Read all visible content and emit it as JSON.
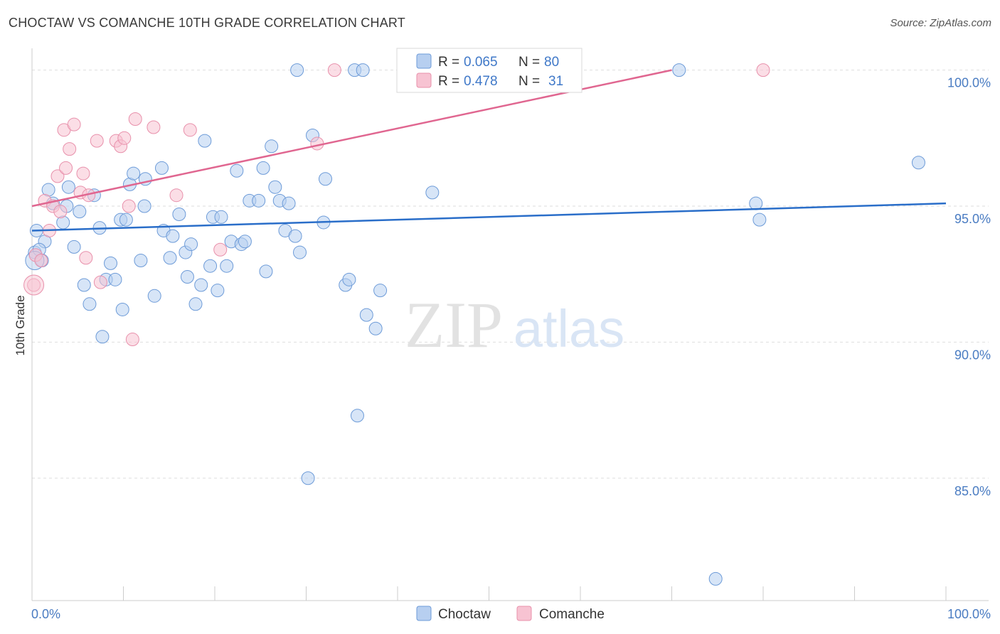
{
  "header": {
    "title": "CHOCTAW VS COMANCHE 10TH GRADE CORRELATION CHART",
    "source": "Source: ZipAtlas.com"
  },
  "watermark": {
    "zip": "ZIP",
    "atlas": "atlas"
  },
  "colors": {
    "choctaw_fill": "#b7cff0",
    "choctaw_stroke": "#6d9bd8",
    "choctaw_line": "#2a6ec9",
    "comanche_fill": "#f7c3d2",
    "comanche_stroke": "#e890ab",
    "comanche_line": "#e06690",
    "tick_text": "#4a7cc2",
    "grid": "#dedede"
  },
  "legend_box": {
    "choctaw": {
      "r_label": "R = ",
      "r_value": "0.065",
      "n_label": "N = ",
      "n_value": "80"
    },
    "comanche": {
      "r_label": "R = ",
      "r_value": "0.478",
      "n_label": "N = ",
      "n_value": "31"
    }
  },
  "chart_data": {
    "type": "scatter",
    "title": "CHOCTAW VS COMANCHE 10TH GRADE CORRELATION CHART",
    "xlabel": "",
    "ylabel": "10th Grade",
    "xlim": [
      0,
      100
    ],
    "ylim": [
      80.5,
      100.8
    ],
    "x_tick_labels": [
      "0.0%",
      "100.0%"
    ],
    "y_ticks": [
      85,
      90,
      95,
      100
    ],
    "y_tick_labels": [
      "85.0%",
      "90.0%",
      "95.0%",
      "100.0%"
    ],
    "grid": true,
    "legend_position": "bottom-center",
    "series": [
      {
        "name": "Choctaw",
        "trend": [
          [
            0,
            94.1
          ],
          [
            100,
            95.1
          ]
        ],
        "points": [
          [
            0.5,
            94.1
          ],
          [
            1.4,
            93.7
          ],
          [
            1.8,
            95.6
          ],
          [
            2.3,
            95.1
          ],
          [
            3.4,
            94.4
          ],
          [
            3.8,
            95.0
          ],
          [
            4.0,
            95.7
          ],
          [
            4.6,
            93.5
          ],
          [
            5.2,
            94.8
          ],
          [
            5.7,
            92.1
          ],
          [
            6.3,
            91.4
          ],
          [
            6.8,
            95.4
          ],
          [
            7.4,
            94.2
          ],
          [
            7.7,
            90.2
          ],
          [
            8.1,
            92.3
          ],
          [
            8.6,
            92.9
          ],
          [
            9.1,
            92.3
          ],
          [
            9.7,
            94.5
          ],
          [
            9.9,
            91.2
          ],
          [
            10.3,
            94.5
          ],
          [
            10.7,
            95.8
          ],
          [
            11.1,
            96.2
          ],
          [
            11.9,
            93.0
          ],
          [
            12.3,
            95.0
          ],
          [
            12.4,
            96.0
          ],
          [
            13.4,
            91.7
          ],
          [
            14.2,
            96.4
          ],
          [
            14.4,
            94.1
          ],
          [
            15.1,
            93.1
          ],
          [
            15.4,
            93.9
          ],
          [
            16.1,
            94.7
          ],
          [
            16.8,
            93.3
          ],
          [
            17.0,
            92.4
          ],
          [
            17.4,
            93.6
          ],
          [
            17.9,
            91.4
          ],
          [
            18.5,
            92.1
          ],
          [
            18.9,
            97.4
          ],
          [
            19.5,
            92.8
          ],
          [
            19.8,
            94.6
          ],
          [
            20.3,
            91.9
          ],
          [
            20.7,
            94.6
          ],
          [
            21.3,
            92.8
          ],
          [
            21.8,
            93.7
          ],
          [
            22.4,
            96.3
          ],
          [
            22.9,
            93.6
          ],
          [
            23.3,
            93.7
          ],
          [
            23.8,
            95.2
          ],
          [
            24.8,
            95.2
          ],
          [
            25.6,
            92.6
          ],
          [
            26.2,
            97.2
          ],
          [
            26.6,
            95.7
          ],
          [
            27.1,
            95.2
          ],
          [
            27.7,
            94.1
          ],
          [
            28.1,
            95.1
          ],
          [
            28.8,
            93.9
          ],
          [
            29.0,
            100.0
          ],
          [
            29.3,
            93.3
          ],
          [
            30.2,
            85.0
          ],
          [
            30.7,
            97.6
          ],
          [
            31.9,
            94.4
          ],
          [
            32.1,
            96.0
          ],
          [
            34.3,
            92.1
          ],
          [
            35.3,
            100.0
          ],
          [
            35.6,
            87.3
          ],
          [
            36.2,
            100.0
          ],
          [
            36.6,
            91.0
          ],
          [
            37.6,
            90.5
          ],
          [
            38.1,
            91.9
          ],
          [
            43.8,
            95.5
          ],
          [
            45.9,
            100.0
          ],
          [
            70.8,
            100.0
          ],
          [
            74.8,
            81.3
          ],
          [
            79.2,
            95.1
          ],
          [
            79.6,
            94.5
          ],
          [
            97.0,
            96.6
          ],
          [
            0.3,
            93.3
          ],
          [
            1.1,
            93.0
          ],
          [
            0.8,
            93.4
          ],
          [
            34.7,
            92.3
          ],
          [
            25.3,
            96.4
          ]
        ]
      },
      {
        "name": "Comanche",
        "trend": [
          [
            0,
            95.0
          ],
          [
            70,
            100.0
          ]
        ],
        "points": [
          [
            0.2,
            92.1
          ],
          [
            0.4,
            93.2
          ],
          [
            1.0,
            93.0
          ],
          [
            1.4,
            95.2
          ],
          [
            1.9,
            94.1
          ],
          [
            2.3,
            95.0
          ],
          [
            2.8,
            96.1
          ],
          [
            3.1,
            94.8
          ],
          [
            3.5,
            97.8
          ],
          [
            3.7,
            96.4
          ],
          [
            4.1,
            97.1
          ],
          [
            4.6,
            98.0
          ],
          [
            5.3,
            95.5
          ],
          [
            5.6,
            96.2
          ],
          [
            5.9,
            93.1
          ],
          [
            6.2,
            95.4
          ],
          [
            7.1,
            97.4
          ],
          [
            7.5,
            92.2
          ],
          [
            9.2,
            97.4
          ],
          [
            9.7,
            97.2
          ],
          [
            10.1,
            97.5
          ],
          [
            10.6,
            95.0
          ],
          [
            11.0,
            90.1
          ],
          [
            11.3,
            98.2
          ],
          [
            13.3,
            97.9
          ],
          [
            15.8,
            95.4
          ],
          [
            17.3,
            97.8
          ],
          [
            20.6,
            93.4
          ],
          [
            31.2,
            97.3
          ],
          [
            33.1,
            100.0
          ],
          [
            80.0,
            100.0
          ]
        ]
      }
    ]
  },
  "legend": [
    {
      "label": "Choctaw"
    },
    {
      "label": "Comanche"
    }
  ]
}
